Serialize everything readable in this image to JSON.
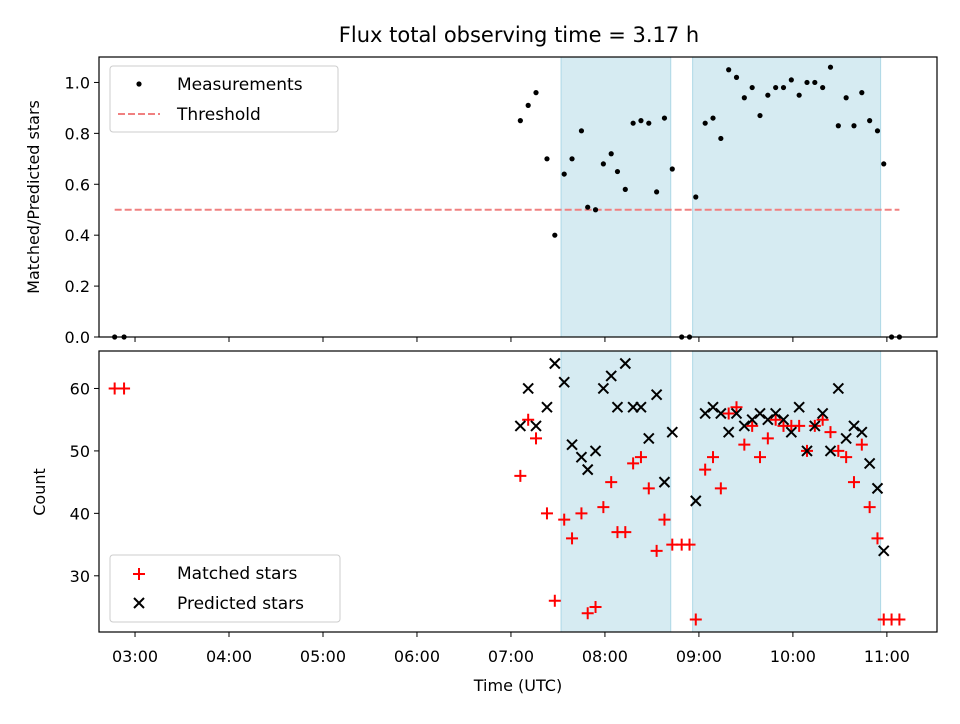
{
  "chart_data": [
    {
      "type": "scatter",
      "title": "Flux total observing time = 3.17 h",
      "xlabel": "",
      "ylabel": "Matched/Predicted stars",
      "xlim": [
        "02:37",
        "11:32"
      ],
      "ylim": [
        0,
        1.1
      ],
      "yticks": [
        "0.0",
        "0.2",
        "0.4",
        "0.6",
        "0.8",
        "1.0"
      ],
      "legend_placement": "top-left",
      "shaded_intervals": [
        [
          "07:32",
          "08:42"
        ],
        [
          "08:56",
          "10:56"
        ]
      ],
      "series": [
        {
          "name": "Measurements",
          "marker": "dot",
          "color": "#000000",
          "points": [
            [
              "02:47",
              0.0
            ],
            [
              "02:53",
              0.0
            ],
            [
              "07:06",
              0.85
            ],
            [
              "07:11",
              0.91
            ],
            [
              "07:16",
              0.96
            ],
            [
              "07:23",
              0.7
            ],
            [
              "07:28",
              0.4
            ],
            [
              "07:34",
              0.64
            ],
            [
              "07:39",
              0.7
            ],
            [
              "07:45",
              0.81
            ],
            [
              "07:49",
              0.51
            ],
            [
              "07:54",
              0.5
            ],
            [
              "07:59",
              0.68
            ],
            [
              "08:04",
              0.72
            ],
            [
              "08:08",
              0.65
            ],
            [
              "08:13",
              0.58
            ],
            [
              "08:18",
              0.84
            ],
            [
              "08:23",
              0.85
            ],
            [
              "08:28",
              0.84
            ],
            [
              "08:33",
              0.57
            ],
            [
              "08:38",
              0.86
            ],
            [
              "08:43",
              0.66
            ],
            [
              "08:49",
              0.0
            ],
            [
              "08:54",
              0.0
            ],
            [
              "08:58",
              0.55
            ],
            [
              "09:04",
              0.84
            ],
            [
              "09:09",
              0.86
            ],
            [
              "09:14",
              0.78
            ],
            [
              "09:19",
              1.05
            ],
            [
              "09:24",
              1.02
            ],
            [
              "09:29",
              0.94
            ],
            [
              "09:34",
              0.98
            ],
            [
              "09:39",
              0.87
            ],
            [
              "09:44",
              0.95
            ],
            [
              "09:49",
              0.98
            ],
            [
              "09:54",
              0.98
            ],
            [
              "09:59",
              1.01
            ],
            [
              "10:04",
              0.95
            ],
            [
              "10:09",
              1.0
            ],
            [
              "10:14",
              1.0
            ],
            [
              "10:19",
              0.98
            ],
            [
              "10:24",
              1.06
            ],
            [
              "10:29",
              0.83
            ],
            [
              "10:34",
              0.94
            ],
            [
              "10:39",
              0.83
            ],
            [
              "10:44",
              0.96
            ],
            [
              "10:49",
              0.85
            ],
            [
              "10:54",
              0.81
            ],
            [
              "10:58",
              0.68
            ],
            [
              "11:03",
              0.0
            ],
            [
              "11:08",
              0.0
            ]
          ]
        },
        {
          "name": "Threshold",
          "marker": "dashed-line",
          "color": "#f08080",
          "points": [
            [
              "02:47",
              0.5
            ],
            [
              "11:08",
              0.5
            ]
          ]
        }
      ]
    },
    {
      "type": "scatter",
      "title": "",
      "xlabel": "Time (UTC)",
      "ylabel": "Count",
      "xlim": [
        "02:37",
        "11:32"
      ],
      "ylim": [
        21,
        66
      ],
      "yticks": [
        "30",
        "40",
        "50",
        "60"
      ],
      "xticks": [
        "03:00",
        "04:00",
        "05:00",
        "06:00",
        "07:00",
        "08:00",
        "09:00",
        "10:00",
        "11:00"
      ],
      "legend_placement": "bottom-left",
      "shaded_intervals": [
        [
          "07:32",
          "08:42"
        ],
        [
          "08:56",
          "10:56"
        ]
      ],
      "series": [
        {
          "name": "Matched stars",
          "marker": "plus",
          "color": "#ff0000",
          "points": [
            [
              "02:47",
              60
            ],
            [
              "02:53",
              60
            ],
            [
              "07:06",
              46
            ],
            [
              "07:11",
              55
            ],
            [
              "07:16",
              52
            ],
            [
              "07:23",
              40
            ],
            [
              "07:28",
              26
            ],
            [
              "07:34",
              39
            ],
            [
              "07:39",
              36
            ],
            [
              "07:45",
              40
            ],
            [
              "07:49",
              24
            ],
            [
              "07:54",
              25
            ],
            [
              "07:59",
              41
            ],
            [
              "08:04",
              45
            ],
            [
              "08:08",
              37
            ],
            [
              "08:13",
              37
            ],
            [
              "08:18",
              48
            ],
            [
              "08:23",
              49
            ],
            [
              "08:28",
              44
            ],
            [
              "08:33",
              34
            ],
            [
              "08:38",
              39
            ],
            [
              "08:43",
              35
            ],
            [
              "08:49",
              35
            ],
            [
              "08:54",
              35
            ],
            [
              "08:58",
              23
            ],
            [
              "09:04",
              47
            ],
            [
              "09:09",
              49
            ],
            [
              "09:14",
              44
            ],
            [
              "09:19",
              56
            ],
            [
              "09:24",
              57
            ],
            [
              "09:29",
              51
            ],
            [
              "09:34",
              54
            ],
            [
              "09:39",
              49
            ],
            [
              "09:44",
              52
            ],
            [
              "09:49",
              55
            ],
            [
              "09:54",
              54
            ],
            [
              "09:59",
              54
            ],
            [
              "10:04",
              54
            ],
            [
              "10:09",
              50
            ],
            [
              "10:14",
              54
            ],
            [
              "10:19",
              55
            ],
            [
              "10:24",
              53
            ],
            [
              "10:29",
              50
            ],
            [
              "10:34",
              49
            ],
            [
              "10:39",
              45
            ],
            [
              "10:44",
              51
            ],
            [
              "10:49",
              41
            ],
            [
              "10:54",
              36
            ],
            [
              "10:58",
              23
            ],
            [
              "11:03",
              23
            ],
            [
              "11:08",
              23
            ]
          ]
        },
        {
          "name": "Predicted stars",
          "marker": "x",
          "color": "#000000",
          "points": [
            [
              "07:06",
              54
            ],
            [
              "07:11",
              60
            ],
            [
              "07:16",
              54
            ],
            [
              "07:23",
              57
            ],
            [
              "07:28",
              64
            ],
            [
              "07:34",
              61
            ],
            [
              "07:39",
              51
            ],
            [
              "07:45",
              49
            ],
            [
              "07:49",
              47
            ],
            [
              "07:54",
              50
            ],
            [
              "07:59",
              60
            ],
            [
              "08:04",
              62
            ],
            [
              "08:08",
              57
            ],
            [
              "08:13",
              64
            ],
            [
              "08:18",
              57
            ],
            [
              "08:23",
              57
            ],
            [
              "08:28",
              52
            ],
            [
              "08:33",
              59
            ],
            [
              "08:38",
              45
            ],
            [
              "08:43",
              53
            ],
            [
              "08:58",
              42
            ],
            [
              "09:04",
              56
            ],
            [
              "09:09",
              57
            ],
            [
              "09:14",
              56
            ],
            [
              "09:19",
              53
            ],
            [
              "09:24",
              56
            ],
            [
              "09:29",
              54
            ],
            [
              "09:34",
              55
            ],
            [
              "09:39",
              56
            ],
            [
              "09:44",
              55
            ],
            [
              "09:49",
              56
            ],
            [
              "09:54",
              55
            ],
            [
              "09:59",
              53
            ],
            [
              "10:04",
              57
            ],
            [
              "10:09",
              50
            ],
            [
              "10:14",
              54
            ],
            [
              "10:19",
              56
            ],
            [
              "10:24",
              50
            ],
            [
              "10:29",
              60
            ],
            [
              "10:34",
              52
            ],
            [
              "10:39",
              54
            ],
            [
              "10:44",
              53
            ],
            [
              "10:49",
              48
            ],
            [
              "10:54",
              44
            ],
            [
              "10:58",
              34
            ]
          ]
        }
      ]
    }
  ]
}
